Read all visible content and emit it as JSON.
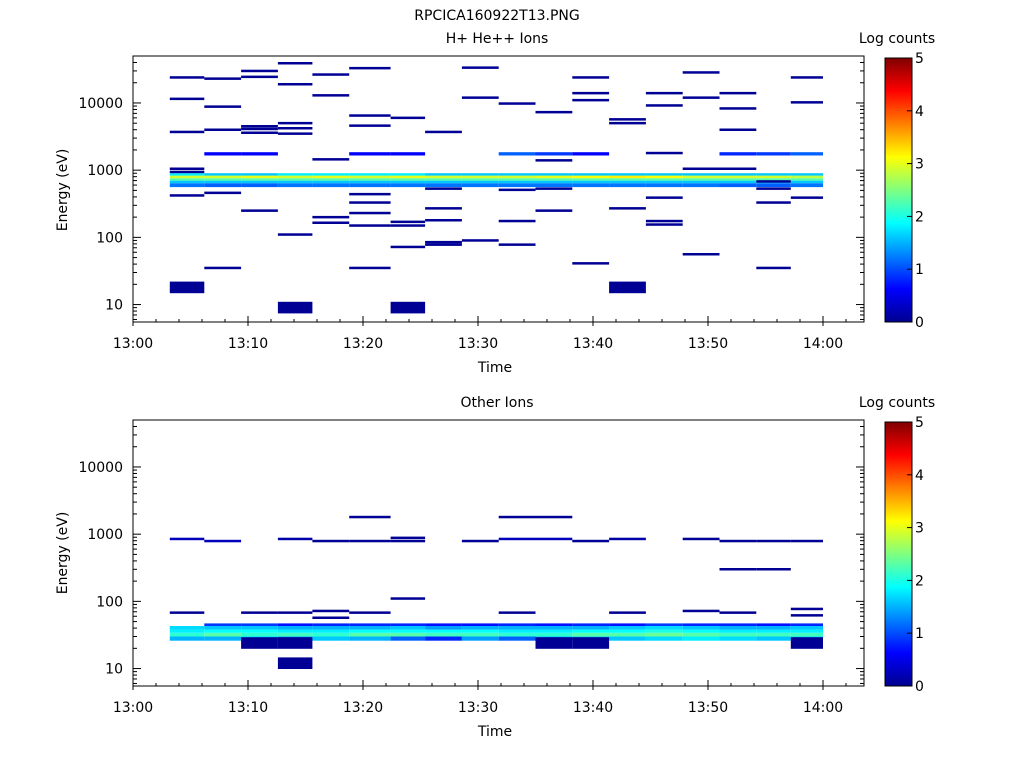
{
  "figure": {
    "title": "RPCICA160922T13.PNG"
  },
  "chart_data": [
    {
      "type": "heatmap",
      "title": "H+ He++ Ions",
      "xlabel": "Time",
      "ylabel": "Energy (eV)",
      "x_range_min": [
        0,
        63
      ],
      "x_ticks": [
        "13:00",
        "13:10",
        "13:20",
        "13:30",
        "13:40",
        "13:50",
        "14:00"
      ],
      "y_scale": "log",
      "y_range_ev": [
        5.5,
        50000
      ],
      "y_ticks": [
        "10",
        "100",
        "1000",
        "10000"
      ],
      "colorbar": {
        "label": "Log counts",
        "range": [
          0,
          5
        ],
        "ticks": [
          "0",
          "1",
          "2",
          "3",
          "4",
          "5"
        ]
      },
      "time_bins_min": [
        3.2,
        6.2,
        9.4,
        12.6,
        15.6,
        18.8,
        22.4,
        25.4,
        28.6,
        31.8,
        35,
        38.2,
        41.4,
        44.6,
        47.8,
        51,
        54.2,
        57.2,
        60
      ],
      "bands": [
        {
          "e": [
            560,
            640
          ],
          "v": [
            1.2,
            1.1,
            1.1,
            1.2,
            1.2,
            1.2,
            1.2,
            1.2,
            1.2,
            1.2,
            1.2,
            1.2,
            1.2,
            1.2,
            1.2,
            1.1,
            1.1,
            1.2
          ]
        },
        {
          "e": [
            640,
            700
          ],
          "v": [
            1.6,
            1.6,
            1.6,
            1.6,
            1.6,
            1.6,
            1.6,
            1.6,
            1.6,
            1.6,
            1.6,
            1.6,
            1.6,
            1.6,
            1.6,
            1.6,
            1.6,
            1.6
          ]
        },
        {
          "e": [
            700,
            760
          ],
          "v": [
            2.3,
            2.3,
            2.3,
            2.3,
            2.3,
            2.3,
            2.3,
            2.3,
            2.3,
            2.3,
            2.3,
            2.3,
            2.3,
            2.3,
            2.3,
            2.3,
            2.3,
            2.3
          ]
        },
        {
          "e": [
            760,
            830
          ],
          "v": [
            2.9,
            2.9,
            3,
            2.9,
            3,
            2.9,
            3,
            2.9,
            2.9,
            2.9,
            3,
            3.1,
            3.2,
            3.1,
            2.9,
            2.9,
            2.9,
            2.8
          ]
        },
        {
          "e": [
            830,
            900
          ],
          "v": [
            1.8,
            1.6,
            1.6,
            1.8,
            1.8,
            1.8,
            1.8,
            1.6,
            1.6,
            1.6,
            1.6,
            1.6,
            1.6,
            1.6,
            1.6,
            1.6,
            1.6,
            1.6
          ]
        },
        {
          "e": [
            1650,
            1850
          ],
          "v": [
            null,
            0.6,
            0.6,
            null,
            null,
            0.6,
            0.6,
            null,
            null,
            1.1,
            0.9,
            0.6,
            null,
            null,
            null,
            0.8,
            0.9,
            1.1
          ]
        }
      ],
      "events": [
        [
          0,
          24000,
          0.1
        ],
        [
          0,
          11500,
          0.1
        ],
        [
          0,
          3700,
          0.1
        ],
        [
          0,
          1050,
          0.1
        ],
        [
          0,
          940,
          0.1
        ],
        [
          0,
          420,
          0.1
        ],
        [
          0,
          18,
          0.1
        ],
        [
          1,
          23000,
          0.1
        ],
        [
          1,
          8800,
          0.1
        ],
        [
          1,
          4000,
          0.1
        ],
        [
          1,
          460,
          0.1
        ],
        [
          1,
          35,
          0.1
        ],
        [
          2,
          30000,
          0.1
        ],
        [
          2,
          24500,
          0.1
        ],
        [
          2,
          4500,
          0.1
        ],
        [
          2,
          4100,
          0.1
        ],
        [
          2,
          3600,
          0.1
        ],
        [
          2,
          250,
          0.1
        ],
        [
          3,
          39000,
          0.1
        ],
        [
          3,
          19000,
          0.1
        ],
        [
          3,
          5000,
          0.1
        ],
        [
          3,
          4200,
          0.1
        ],
        [
          3,
          3500,
          0.1
        ],
        [
          3,
          110,
          0.1
        ],
        [
          3,
          9,
          0.1
        ],
        [
          4,
          26500,
          0.1
        ],
        [
          4,
          13000,
          0.1
        ],
        [
          4,
          1450,
          0.1
        ],
        [
          4,
          200,
          0.1
        ],
        [
          4,
          165,
          0.1
        ],
        [
          5,
          33000,
          0.1
        ],
        [
          5,
          6500,
          0.1
        ],
        [
          5,
          4600,
          0.1
        ],
        [
          5,
          440,
          0.1
        ],
        [
          5,
          330,
          0.1
        ],
        [
          5,
          230,
          0.1
        ],
        [
          5,
          150,
          0.1
        ],
        [
          5,
          35,
          0.1
        ],
        [
          6,
          6000,
          0.1
        ],
        [
          6,
          170,
          0.1
        ],
        [
          6,
          150,
          0.1
        ],
        [
          6,
          72,
          0.1
        ],
        [
          6,
          9,
          0.1
        ],
        [
          7,
          3700,
          0.1
        ],
        [
          7,
          530,
          0.1
        ],
        [
          7,
          270,
          0.1
        ],
        [
          7,
          180,
          0.1
        ],
        [
          7,
          85,
          0.1
        ],
        [
          7,
          78,
          0.1
        ],
        [
          8,
          33500,
          0.1
        ],
        [
          8,
          12000,
          0.1
        ],
        [
          8,
          90,
          0.1
        ],
        [
          9,
          9800,
          0.1
        ],
        [
          9,
          510,
          0.1
        ],
        [
          9,
          175,
          0.1
        ],
        [
          9,
          78,
          0.1
        ],
        [
          10,
          7300,
          0.1
        ],
        [
          10,
          1400,
          0.1
        ],
        [
          10,
          530,
          0.1
        ],
        [
          10,
          250,
          0.1
        ],
        [
          11,
          24000,
          0.1
        ],
        [
          11,
          14000,
          0.1
        ],
        [
          11,
          11000,
          0.1
        ],
        [
          11,
          41,
          0.1
        ],
        [
          12,
          5700,
          0.1
        ],
        [
          12,
          5000,
          0.1
        ],
        [
          12,
          270,
          0.1
        ],
        [
          12,
          18,
          0.1
        ],
        [
          13,
          14000,
          0.1
        ],
        [
          13,
          9200,
          0.1
        ],
        [
          13,
          1800,
          0.1
        ],
        [
          13,
          390,
          0.1
        ],
        [
          13,
          175,
          0.1
        ],
        [
          13,
          155,
          0.1
        ],
        [
          14,
          28500,
          0.1
        ],
        [
          14,
          12000,
          0.1
        ],
        [
          14,
          1050,
          0.1
        ],
        [
          14,
          56,
          0.1
        ],
        [
          15,
          14000,
          0.1
        ],
        [
          15,
          8300,
          0.1
        ],
        [
          15,
          4000,
          0.1
        ],
        [
          15,
          1050,
          0.1
        ],
        [
          16,
          680,
          0.1
        ],
        [
          16,
          530,
          0.1
        ],
        [
          16,
          330,
          0.1
        ],
        [
          16,
          35,
          0.1
        ],
        [
          17,
          24000,
          0.1
        ],
        [
          17,
          10200,
          0.1
        ],
        [
          17,
          390,
          0.1
        ]
      ]
    },
    {
      "type": "heatmap",
      "title": "Other Ions",
      "xlabel": "Time",
      "ylabel": "Energy (eV)",
      "x_range_min": [
        0,
        63
      ],
      "x_ticks": [
        "13:00",
        "13:10",
        "13:20",
        "13:30",
        "13:40",
        "13:50",
        "14:00"
      ],
      "y_scale": "log",
      "y_range_ev": [
        5.5,
        50000
      ],
      "y_ticks": [
        "10",
        "100",
        "1000",
        "10000"
      ],
      "colorbar": {
        "label": "Log counts",
        "range": [
          0,
          5
        ],
        "ticks": [
          "0",
          "1",
          "2",
          "3",
          "4",
          "5"
        ]
      },
      "time_bins_min": [
        3.2,
        6.2,
        9.4,
        12.6,
        15.6,
        18.8,
        22.4,
        25.4,
        28.6,
        31.8,
        35,
        38.2,
        41.4,
        44.6,
        47.8,
        51,
        54.2,
        57.2,
        60
      ],
      "bands": [
        {
          "e": [
            26,
            30
          ],
          "v": [
            1.5,
            1.5,
            1.7,
            1.4,
            1.6,
            1.5,
            1.1,
            0.8,
            1.4,
            1.1,
            1.5,
            1.6,
            1.6,
            1.7,
            1.8,
            1.7,
            1.6,
            1.7
          ]
        },
        {
          "e": [
            30,
            34
          ],
          "v": [
            2.1,
            2.3,
            2.1,
            2.2,
            2.1,
            2.3,
            2.3,
            2.2,
            2.2,
            2.1,
            2.1,
            2.3,
            2.3,
            2.4,
            2.3,
            2.2,
            2.2,
            2.2
          ]
        },
        {
          "e": [
            34,
            38
          ],
          "v": [
            1.8,
            1.9,
            1.9,
            1.8,
            1.8,
            1.9,
            1.9,
            1.9,
            1.9,
            1.8,
            1.8,
            1.9,
            1.9,
            2,
            1.9,
            1.8,
            1.8,
            1.8
          ]
        },
        {
          "e": [
            38,
            43
          ],
          "v": [
            1.7,
            1.6,
            1.6,
            1.5,
            1.5,
            1.5,
            1.6,
            1.4,
            1.5,
            1.5,
            1.5,
            1.5,
            1.6,
            1.7,
            1.6,
            1.5,
            1.5,
            1.6
          ]
        },
        {
          "e": [
            43,
            47
          ],
          "v": [
            null,
            0.9,
            0.9,
            0.7,
            0.8,
            0.8,
            0.8,
            0.7,
            0.7,
            0.8,
            0.7,
            0.8,
            0.7,
            0.9,
            0.8,
            0.8,
            0.7,
            0.8
          ]
        }
      ],
      "events": [
        [
          0,
          850,
          0.3
        ],
        [
          0,
          68,
          0.1
        ],
        [
          1,
          790,
          0.3
        ],
        [
          2,
          68,
          0.1
        ],
        [
          2,
          24,
          0.1
        ],
        [
          3,
          850,
          0.2
        ],
        [
          3,
          68,
          0.1
        ],
        [
          3,
          24,
          0.1
        ],
        [
          3,
          12,
          0.1
        ],
        [
          4,
          790,
          0.1
        ],
        [
          4,
          72,
          0.1
        ],
        [
          4,
          57,
          0.1
        ],
        [
          5,
          1800,
          0.1
        ],
        [
          5,
          790,
          0.1
        ],
        [
          5,
          68,
          0.1
        ],
        [
          6,
          880,
          0.1
        ],
        [
          6,
          790,
          0.1
        ],
        [
          6,
          110,
          0.1
        ],
        [
          8,
          790,
          0.1
        ],
        [
          9,
          1800,
          0.1
        ],
        [
          9,
          850,
          0.3
        ],
        [
          9,
          68,
          0.1
        ],
        [
          10,
          1800,
          0.1
        ],
        [
          10,
          850,
          0.3
        ],
        [
          10,
          24,
          0.1
        ],
        [
          11,
          790,
          0.1
        ],
        [
          11,
          24,
          0.1
        ],
        [
          12,
          850,
          0.2
        ],
        [
          12,
          68,
          0.1
        ],
        [
          14,
          850,
          0.1
        ],
        [
          14,
          72,
          0.1
        ],
        [
          15,
          790,
          0.1
        ],
        [
          15,
          300,
          0.1
        ],
        [
          15,
          68,
          0.1
        ],
        [
          16,
          790,
          0.1
        ],
        [
          16,
          300,
          0.1
        ],
        [
          17,
          790,
          0.1
        ],
        [
          17,
          77,
          0.1
        ],
        [
          17,
          62,
          0.1
        ],
        [
          17,
          24,
          0.1
        ]
      ]
    }
  ]
}
